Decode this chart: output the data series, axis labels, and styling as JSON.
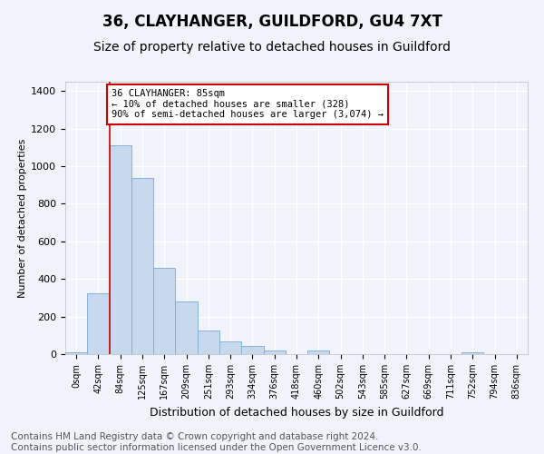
{
  "title": "36, CLAYHANGER, GUILDFORD, GU4 7XT",
  "subtitle": "Size of property relative to detached houses in Guildford",
  "xlabel": "Distribution of detached houses by size in Guildford",
  "ylabel": "Number of detached properties",
  "categories": [
    "0sqm",
    "42sqm",
    "84sqm",
    "125sqm",
    "167sqm",
    "209sqm",
    "251sqm",
    "293sqm",
    "334sqm",
    "376sqm",
    "418sqm",
    "460sqm",
    "502sqm",
    "543sqm",
    "585sqm",
    "627sqm",
    "669sqm",
    "711sqm",
    "752sqm",
    "794sqm",
    "836sqm"
  ],
  "values": [
    10,
    325,
    1110,
    940,
    460,
    280,
    125,
    70,
    45,
    20,
    0,
    20,
    0,
    0,
    0,
    0,
    0,
    0,
    10,
    0,
    0
  ],
  "bar_color": "#c8d8ee",
  "bar_edge_color": "#7aaad0",
  "annotation_text_line1": "36 CLAYHANGER: 85sqm",
  "annotation_text_line2": "← 10% of detached houses are smaller (328)",
  "annotation_text_line3": "90% of semi-detached houses are larger (3,074) →",
  "annotation_box_color": "#ffffff",
  "annotation_box_edge": "#cc0000",
  "vline_color": "#cc0000",
  "ylim": [
    0,
    1450
  ],
  "yticks": [
    0,
    200,
    400,
    600,
    800,
    1000,
    1200,
    1400
  ],
  "footnote": "Contains HM Land Registry data © Crown copyright and database right 2024.\nContains public sector information licensed under the Open Government Licence v3.0.",
  "bg_color": "#f0f4fa",
  "title_fontsize": 12,
  "subtitle_fontsize": 10,
  "xlabel_fontsize": 9,
  "ylabel_fontsize": 8,
  "footnote_fontsize": 7.5
}
